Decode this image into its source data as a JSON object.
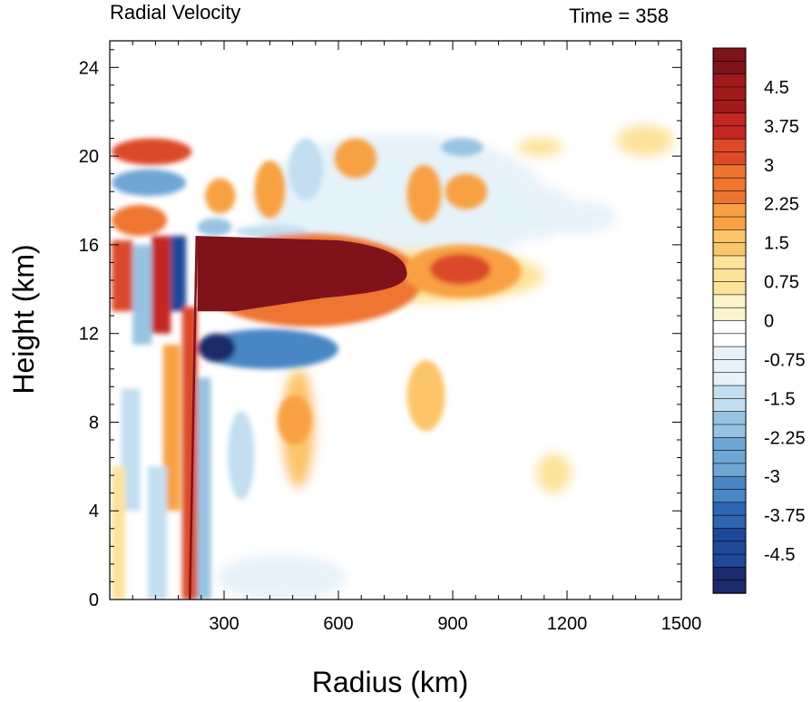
{
  "chart_data": {
    "type": "heatmap",
    "title": "Radial Velocity",
    "subtitle": "Time = 358",
    "xlabel": "Radius (km)",
    "ylabel": "Height (km)",
    "xlim": [
      0,
      1500
    ],
    "ylim": [
      0,
      25.2
    ],
    "x_ticks": [
      300,
      600,
      900,
      1200,
      1500
    ],
    "y_ticks": [
      0,
      4,
      8,
      12,
      16,
      20,
      24
    ],
    "x_tick_labels": [
      "300",
      "600",
      "900",
      "1200",
      "1500"
    ],
    "y_tick_labels": [
      "0",
      "4",
      "8",
      "12",
      "16",
      "20",
      "24"
    ],
    "colorbar": {
      "min": -5.25,
      "max": 5.25,
      "step": 0.25,
      "labels": [
        "4.5",
        "3.75",
        "3",
        "2.25",
        "1.5",
        "0.75",
        "0",
        "-0.75",
        "-1.5",
        "-2.25",
        "-3",
        "-3.75",
        "-4.5"
      ],
      "label_values": [
        4.5,
        3.75,
        3,
        2.25,
        1.5,
        0.75,
        0,
        -0.75,
        -1.5,
        -2.25,
        -3,
        -3.75,
        -4.5
      ],
      "colors": [
        "#1b2a6b",
        "#1f4899",
        "#2f66b2",
        "#4a86c4",
        "#6ea6d4",
        "#97c3e2",
        "#c2def0",
        "#e6f2f9",
        "#ffffff",
        "#fdf3cc",
        "#fde29a",
        "#fcc569",
        "#f8a142",
        "#ee7530",
        "#dc4a2a",
        "#c42622",
        "#a01a1c",
        "#80121a"
      ]
    },
    "features": [
      {
        "name": "upper-level outflow jet",
        "r": [
          230,
          780
        ],
        "z": [
          13.0,
          16.4
        ],
        "value": 5.25
      },
      {
        "name": "outflow extension",
        "r": [
          780,
          1050
        ],
        "z": [
          14.0,
          15.8
        ],
        "value": 2.5
      },
      {
        "name": "inflow below outflow",
        "r": [
          230,
          600
        ],
        "z": [
          10.4,
          12.2
        ],
        "value": -3.5
      },
      {
        "name": "inner core vertical band",
        "r": [
          200,
          230
        ],
        "z": [
          0,
          13.0
        ],
        "value": 3.5
      }
    ]
  }
}
